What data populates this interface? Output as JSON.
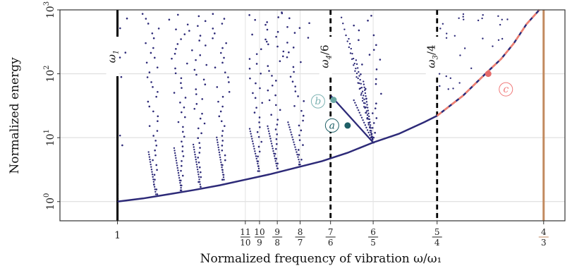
{
  "chart_data": {
    "type": "scatter",
    "title": "",
    "xlabel": "Normalized frequency of vibration ω/ω₁",
    "ylabel": "Normalized energy",
    "xlim": [
      0.955,
      1.35
    ],
    "ylim": [
      0.5,
      1000
    ],
    "y_scale": "log",
    "grid": true,
    "x_ticks": [
      {
        "value": 1.0,
        "num": "1",
        "den": "",
        "color": "#222222"
      },
      {
        "value": 1.1,
        "num": "11",
        "den": "10",
        "color": "#222222"
      },
      {
        "value": 1.1111,
        "num": "10",
        "den": "9",
        "color": "#222222"
      },
      {
        "value": 1.125,
        "num": "9",
        "den": "8",
        "color": "#222222"
      },
      {
        "value": 1.142857,
        "num": "8",
        "den": "7",
        "color": "#222222"
      },
      {
        "value": 1.166667,
        "num": "7",
        "den": "6",
        "color": "#222222"
      },
      {
        "value": 1.2,
        "num": "6",
        "den": "5",
        "color": "#222222"
      },
      {
        "value": 1.25,
        "num": "5",
        "den": "4",
        "color": "#222222"
      },
      {
        "value": 1.333333,
        "num": "4",
        "den": "3",
        "color": "#c28a5f"
      }
    ],
    "y_ticks": [
      {
        "value": 1,
        "base": "10",
        "exp": "0"
      },
      {
        "value": 10,
        "base": "10",
        "exp": "1"
      },
      {
        "value": 100,
        "base": "10",
        "exp": "2"
      },
      {
        "value": 1000,
        "base": "10",
        "exp": "3"
      }
    ],
    "vertical_lines": [
      {
        "x": 1.0,
        "label": "ω",
        "sub": "1",
        "suffix": "",
        "style": "solid",
        "color": "#000000",
        "label_y": 400
      },
      {
        "x": 1.166667,
        "label": "ω",
        "sub": "4",
        "suffix": "/6",
        "style": "dashed",
        "color": "#000000",
        "label_y": 400
      },
      {
        "x": 1.25,
        "label": "ω",
        "sub": "3",
        "suffix": "/4",
        "style": "dashed",
        "color": "#000000",
        "label_y": 400
      },
      {
        "x": 1.333333,
        "label": "",
        "sub": "",
        "suffix": "",
        "style": "solid",
        "color": "#c28a5f",
        "label_y": 0
      }
    ],
    "backbone": {
      "name": "",
      "color": "#2d2a78",
      "x": [
        1.0,
        1.02,
        1.04,
        1.06,
        1.08,
        1.1,
        1.12,
        1.14,
        1.16,
        1.18,
        1.2,
        1.22,
        1.24,
        1.25,
        1.27,
        1.29,
        1.3,
        1.31,
        1.32,
        1.33
      ],
      "y": [
        1.0,
        1.12,
        1.3,
        1.52,
        1.8,
        2.2,
        2.7,
        3.4,
        4.3,
        5.8,
        8.4,
        11.5,
        17.5,
        22.0,
        45,
        110,
        170,
        300,
        600,
        1100
      ]
    },
    "overlay": {
      "color": "#f08070",
      "x": [
        1.25,
        1.27,
        1.29,
        1.3,
        1.31,
        1.32,
        1.33
      ],
      "y": [
        22.0,
        45,
        110,
        170,
        300,
        600,
        1100
      ]
    },
    "segment_ab": {
      "x": [
        1.167,
        1.2
      ],
      "y": [
        45,
        8.4
      ],
      "color": "#2d2a78"
    },
    "points": [
      {
        "id": "a",
        "label": "a",
        "x": 1.18,
        "y": 15.5,
        "color": "#1e5f66",
        "ring": "#1e5f66"
      },
      {
        "id": "b",
        "label": "b",
        "x": 1.169,
        "y": 39,
        "color": "#6aa8a4",
        "ring": "#7db3b3"
      },
      {
        "id": "c",
        "label": "c",
        "x": 1.29,
        "y": 100,
        "color": "#e56a6a",
        "ring": "#f07a7a"
      }
    ],
    "scatter": {
      "name": "",
      "color": "#2d2a78",
      "note_families": [
        {
          "x0": 1.0,
          "y0": 1.1,
          "spread": 0.004
        },
        {
          "x0": 1.03,
          "y0": 1.3,
          "spread": 0.003
        },
        {
          "x0": 1.05,
          "y0": 1.5,
          "spread": 0.003
        },
        {
          "x0": 1.065,
          "y0": 1.7,
          "spread": 0.003
        },
        {
          "x0": 1.0833,
          "y0": 2.2,
          "spread": 0.003
        },
        {
          "x0": 1.111,
          "y0": 3.0,
          "spread": 0.004
        },
        {
          "x0": 1.125,
          "y0": 3.3,
          "spread": 0.004
        },
        {
          "x0": 1.142857,
          "y0": 3.8,
          "spread": 0.005
        },
        {
          "x0": 1.2,
          "y0": 8.4,
          "spread": 0.008
        }
      ]
    }
  }
}
